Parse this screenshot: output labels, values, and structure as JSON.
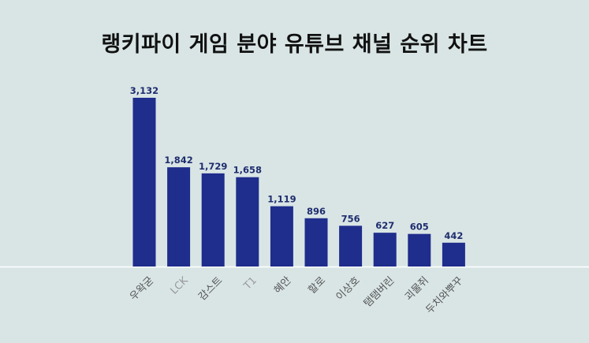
{
  "chart_data": {
    "type": "bar",
    "title": "랭키파이 게임 분야 유튜브 채널 순위 차트",
    "categories": [
      "우왁굳",
      "LCK",
      "감스트",
      "T1",
      "혜안",
      "할로",
      "이상호",
      "탬탬버린",
      "괴물쥐",
      "두치와뿌꾸"
    ],
    "values": [
      3132,
      1842,
      1729,
      1658,
      1119,
      896,
      756,
      627,
      605,
      442
    ],
    "value_labels": [
      "3,132",
      "1,842",
      "1,729",
      "1,658",
      "1,119",
      "896",
      "756",
      "627",
      "605",
      "442"
    ],
    "xlabel": "",
    "ylabel": "",
    "ylim": [
      0,
      3132
    ],
    "grid": false,
    "legend": "none",
    "colors": {
      "background": "#d9e5e5",
      "bar": "#1f2d8c",
      "value_label": "#1f2d6e",
      "tick_label": "#555555",
      "tick_label_latin": "#9a9a9a",
      "axis_line": "#ffffff"
    }
  }
}
